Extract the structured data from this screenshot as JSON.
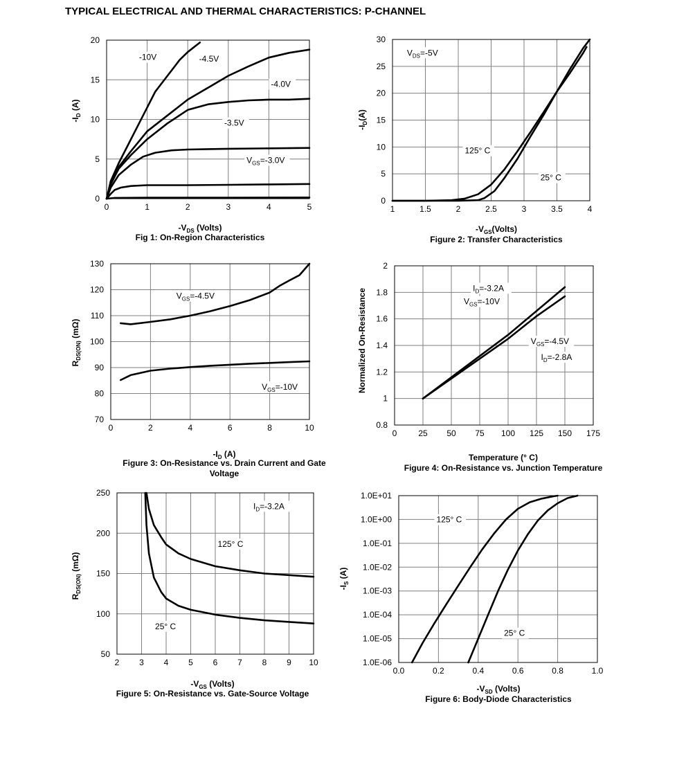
{
  "page_title": "TYPICAL ELECTRICAL AND THERMAL CHARACTERISTICS: P-CHANNEL",
  "chart_data": [
    {
      "id": "fig1",
      "type": "line",
      "caption": "Fig 1: On-Region Characteristics",
      "xlabel": {
        "main": "-V",
        "sub": "DS",
        "rest": " (Volts)"
      },
      "ylabel": {
        "main": "-I",
        "sub": "D",
        "rest": " (A)"
      },
      "xlim": [
        0,
        5
      ],
      "ylim": [
        0,
        20
      ],
      "xticks": [
        "0",
        "1",
        "2",
        "3",
        "4",
        "5"
      ],
      "yticks": [
        "0",
        "5",
        "10",
        "15",
        "20"
      ],
      "grid": true,
      "series": [
        {
          "name": "-10V",
          "x": [
            0,
            0.1,
            0.3,
            0.5,
            0.8,
            1.0,
            1.2,
            1.5,
            1.8,
            2.0,
            2.3
          ],
          "y": [
            0,
            2.2,
            4.5,
            6.5,
            9.5,
            11.5,
            13.5,
            15.5,
            17.5,
            18.5,
            19.7
          ]
        },
        {
          "name": "-4.5V",
          "x": [
            0,
            0.1,
            0.3,
            0.6,
            1.0,
            1.5,
            2.0,
            2.5,
            3.0,
            3.5,
            4.0,
            4.5,
            5.0
          ],
          "y": [
            0,
            2.0,
            4.0,
            6.0,
            8.5,
            10.5,
            12.5,
            14.0,
            15.5,
            16.7,
            17.8,
            18.4,
            18.8
          ]
        },
        {
          "name": "-4.0V",
          "x": [
            0,
            0.1,
            0.3,
            0.6,
            1.0,
            1.5,
            2.0,
            2.5,
            3.0,
            3.5,
            4.0,
            4.5,
            5.0
          ],
          "y": [
            0,
            1.8,
            3.8,
            5.5,
            7.5,
            9.5,
            11.2,
            11.9,
            12.2,
            12.4,
            12.5,
            12.5,
            12.6
          ]
        },
        {
          "name": "-3.5V",
          "x": [
            0,
            0.1,
            0.3,
            0.6,
            0.9,
            1.2,
            1.6,
            2.0,
            2.5,
            3.0,
            4.0,
            5.0
          ],
          "y": [
            0,
            1.4,
            3.0,
            4.3,
            5.3,
            5.8,
            6.1,
            6.2,
            6.25,
            6.3,
            6.35,
            6.4
          ]
        },
        {
          "name": "VGS=-3.0V",
          "x": [
            0,
            0.1,
            0.2,
            0.35,
            0.6,
            1.0,
            2.0,
            3.0,
            4.0,
            5.0
          ],
          "y": [
            0,
            0.6,
            1.1,
            1.4,
            1.6,
            1.7,
            1.7,
            1.75,
            1.8,
            1.85
          ]
        },
        {
          "name": "",
          "x": [
            0,
            0.2,
            1,
            3,
            5
          ],
          "y": [
            0,
            0.1,
            0.12,
            0.13,
            0.15
          ]
        }
      ],
      "annotations": [
        {
          "text": "-10V",
          "x": 0.8,
          "y": 17.5
        },
        {
          "text": "-4.5V",
          "x": 2.28,
          "y": 17.3
        },
        {
          "text": "-4.0V",
          "x": 4.05,
          "y": 14.1
        },
        {
          "text": "-3.5V",
          "x": 2.9,
          "y": 9.2
        },
        {
          "text": "VGS=-3.0V",
          "x": 3.45,
          "y": 4.5,
          "sub": "GS",
          "pre": "V",
          "post": "=-3.0V"
        }
      ]
    },
    {
      "id": "fig2",
      "type": "line",
      "caption": "Figure 2: Transfer Characteristics",
      "xlabel": {
        "main": "-V",
        "sub": "GS",
        "rest": "(Volts)"
      },
      "ylabel": {
        "main": "-I",
        "sub": "D",
        "rest": "(A)"
      },
      "xlim": [
        1,
        4
      ],
      "ylim": [
        0,
        30
      ],
      "xticks": [
        "1",
        "1.5",
        "2",
        "2.5",
        "3",
        "3.5",
        "4"
      ],
      "yticks": [
        "0",
        "5",
        "10",
        "15",
        "20",
        "25",
        "30"
      ],
      "grid": true,
      "series": [
        {
          "name": "125° C",
          "x": [
            1,
            1.5,
            1.9,
            2.1,
            2.3,
            2.5,
            2.7,
            2.9,
            3.1,
            3.3,
            3.5,
            3.7,
            3.9,
            3.95
          ],
          "y": [
            0,
            0,
            0.1,
            0.4,
            1.2,
            3.0,
            5.8,
            9.2,
            12.8,
            16.5,
            20.3,
            23.8,
            27.5,
            28.6
          ]
        },
        {
          "name": "25° C",
          "x": [
            1,
            2.0,
            2.3,
            2.4,
            2.55,
            2.7,
            2.9,
            3.1,
            3.3,
            3.5,
            3.7,
            3.9,
            4.0
          ],
          "y": [
            0,
            0,
            0.1,
            0.5,
            1.8,
            4.2,
            7.8,
            12.0,
            16.0,
            20.3,
            24.5,
            28.4,
            30
          ]
        }
      ],
      "annotations": [
        {
          "text": "VDS=-5V",
          "pre": "V",
          "sub": "DS",
          "post": "=-5V",
          "x": 1.22,
          "y": 27.0
        },
        {
          "text": "125° C",
          "x": 2.1,
          "y": 8.8
        },
        {
          "text": "25° C",
          "x": 3.25,
          "y": 3.8
        }
      ]
    },
    {
      "id": "fig3",
      "type": "line",
      "caption": "Figure 3: On-Resistance vs. Drain Current and Gate Voltage",
      "xlabel": {
        "main": "-I",
        "sub": "D",
        "rest": " (A)"
      },
      "ylabel": {
        "main": "R",
        "sub": "DS(ON)",
        "rest": " (mΩ)"
      },
      "xlim": [
        0,
        10
      ],
      "ylim": [
        70,
        130
      ],
      "xticks": [
        "0",
        "2",
        "4",
        "6",
        "8",
        "10"
      ],
      "yticks": [
        "70",
        "80",
        "90",
        "100",
        "110",
        "120",
        "130"
      ],
      "grid": true,
      "series": [
        {
          "name": "VGS=-4.5V",
          "x": [
            0.5,
            1,
            2,
            3,
            4,
            5,
            6,
            7,
            8,
            8.5,
            9,
            9.5,
            10
          ],
          "y": [
            107.1,
            106.7,
            107.6,
            108.6,
            110.0,
            111.7,
            113.7,
            116.0,
            118.9,
            121.5,
            123.6,
            125.6,
            130
          ]
        },
        {
          "name": "VGS=-10V",
          "x": [
            0.5,
            1,
            2,
            3,
            4,
            5,
            6,
            7,
            8,
            9,
            10
          ],
          "y": [
            85.2,
            87.1,
            88.8,
            89.6,
            90.2,
            90.7,
            91.1,
            91.5,
            91.8,
            92.1,
            92.4
          ]
        }
      ],
      "annotations": [
        {
          "text": "VGS=-4.5V",
          "pre": "V",
          "sub": "GS",
          "post": "=-4.5V",
          "x": 3.3,
          "y": 116.5
        },
        {
          "text": "VGS=-10V",
          "pre": "V",
          "sub": "GS",
          "post": "=-10V",
          "x": 7.6,
          "y": 81.5
        }
      ]
    },
    {
      "id": "fig4",
      "type": "line",
      "caption": "Figure 4: On-Resistance vs. Junction Temperature",
      "xlabel": {
        "main": "Temperature (°  C)",
        "sub": "",
        "rest": ""
      },
      "ylabel": {
        "main": "Normalized On-Resistance",
        "sub": "",
        "rest": ""
      },
      "xlim": [
        0,
        175
      ],
      "ylim": [
        0.8,
        2
      ],
      "xticks": [
        "0",
        "25",
        "50",
        "75",
        "100",
        "125",
        "150",
        "175"
      ],
      "yticks": [
        "0.8",
        "1",
        "1.2",
        "1.4",
        "1.6",
        "1.8",
        "2"
      ],
      "grid": true,
      "series": [
        {
          "name": "ID=-3.2A VGS=-10V",
          "x": [
            25,
            50,
            75,
            100,
            125,
            150
          ],
          "y": [
            1.0,
            1.16,
            1.32,
            1.48,
            1.66,
            1.84
          ]
        },
        {
          "name": "VGS=-4.5V ID=-2.8A",
          "x": [
            25,
            50,
            75,
            100,
            125,
            150
          ],
          "y": [
            1.0,
            1.15,
            1.3,
            1.45,
            1.62,
            1.77
          ]
        }
      ],
      "annotations": [
        {
          "text": "ID=-3.2A",
          "pre": "I",
          "sub": "D",
          "post": "=-3.2A",
          "x": 69,
          "y": 1.81
        },
        {
          "text": "VGS=-10V",
          "pre": "V",
          "sub": "GS",
          "post": "=-10V",
          "x": 61,
          "y": 1.71
        },
        {
          "text": "VGS=-4.5V",
          "pre": "V",
          "sub": "GS",
          "post": "=-4.5V",
          "x": 120,
          "y": 1.41
        },
        {
          "text": "ID=-2.8A",
          "pre": "I",
          "sub": "D",
          "post": "=-2.8A",
          "x": 129,
          "y": 1.29
        }
      ]
    },
    {
      "id": "fig5",
      "type": "line",
      "caption": "Figure 5: On-Resistance vs. Gate-Source Voltage",
      "xlabel": {
        "main": "-V",
        "sub": "GS",
        "rest": " (Volts)"
      },
      "ylabel": {
        "main": "R",
        "sub": "DS(ON)",
        "rest": " (mΩ)"
      },
      "xlim": [
        2,
        10
      ],
      "ylim": [
        50,
        250
      ],
      "xticks": [
        "2",
        "3",
        "4",
        "5",
        "6",
        "7",
        "8",
        "9",
        "10"
      ],
      "yticks": [
        "50",
        "100",
        "150",
        "200",
        "250"
      ],
      "grid": true,
      "series": [
        {
          "name": "125° C",
          "x": [
            3.2,
            3.3,
            3.5,
            3.8,
            4,
            4.5,
            5,
            6,
            7,
            8,
            9,
            10
          ],
          "y": [
            250,
            230,
            210,
            195,
            186,
            175,
            168,
            159,
            154,
            150,
            148,
            146
          ]
        },
        {
          "name": "25° C",
          "x": [
            3.15,
            3.2,
            3.3,
            3.5,
            3.8,
            4,
            4.5,
            5,
            6,
            7,
            8,
            9,
            10
          ],
          "y": [
            250,
            210,
            175,
            145,
            127,
            119,
            110,
            105,
            99,
            95,
            92,
            90,
            88
          ]
        }
      ],
      "annotations": [
        {
          "text": "ID=-3.2A",
          "pre": "I",
          "sub": "D",
          "post": "=-3.2A",
          "x": 7.55,
          "y": 230
        },
        {
          "text": "125° C",
          "x": 6.1,
          "y": 183
        },
        {
          "text": "25° C",
          "x": 3.55,
          "y": 81
        }
      ]
    },
    {
      "id": "fig6",
      "type": "line",
      "yscale": "log",
      "caption": "Figure 6: Body-Diode Characteristics",
      "xlabel": {
        "main": "-V",
        "sub": "SD",
        "rest": " (Volts)"
      },
      "ylabel": {
        "main": "-I",
        "sub": "S",
        "rest": " (A)"
      },
      "xlim": [
        0,
        1.0
      ],
      "ylim": [
        1e-06,
        10
      ],
      "xticks": [
        "0.0",
        "0.2",
        "0.4",
        "0.6",
        "0.8",
        "1.0"
      ],
      "yticks": [
        "1.0E-06",
        "1.0E-05",
        "1.0E-04",
        "1.0E-03",
        "1.0E-02",
        "1.0E-01",
        "1.0E+00",
        "1.0E+01"
      ],
      "grid": true,
      "series": [
        {
          "name": "125° C",
          "x": [
            0.067,
            0.12,
            0.18,
            0.24,
            0.3,
            0.36,
            0.42,
            0.48,
            0.54,
            0.6,
            0.66,
            0.72,
            0.78,
            0.8
          ],
          "y": [
            1e-06,
            6.5e-06,
            4.5e-05,
            0.00028,
            0.0017,
            0.01,
            0.055,
            0.26,
            1.0,
            2.8,
            5.3,
            7.5,
            9.4,
            10
          ]
        },
        {
          "name": "25° C",
          "x": [
            0.35,
            0.4,
            0.45,
            0.5,
            0.55,
            0.6,
            0.65,
            0.7,
            0.75,
            0.8,
            0.85,
            0.9
          ],
          "y": [
            1e-06,
            1e-05,
            0.0001,
            0.001,
            0.008,
            0.05,
            0.24,
            0.9,
            2.4,
            4.8,
            7.9,
            10
          ]
        }
      ],
      "annotations": [
        {
          "text": "125° C",
          "x": 0.19,
          "y": 0.75
        },
        {
          "text": "25° C",
          "x": 0.53,
          "y": 1.3e-05
        }
      ]
    }
  ]
}
